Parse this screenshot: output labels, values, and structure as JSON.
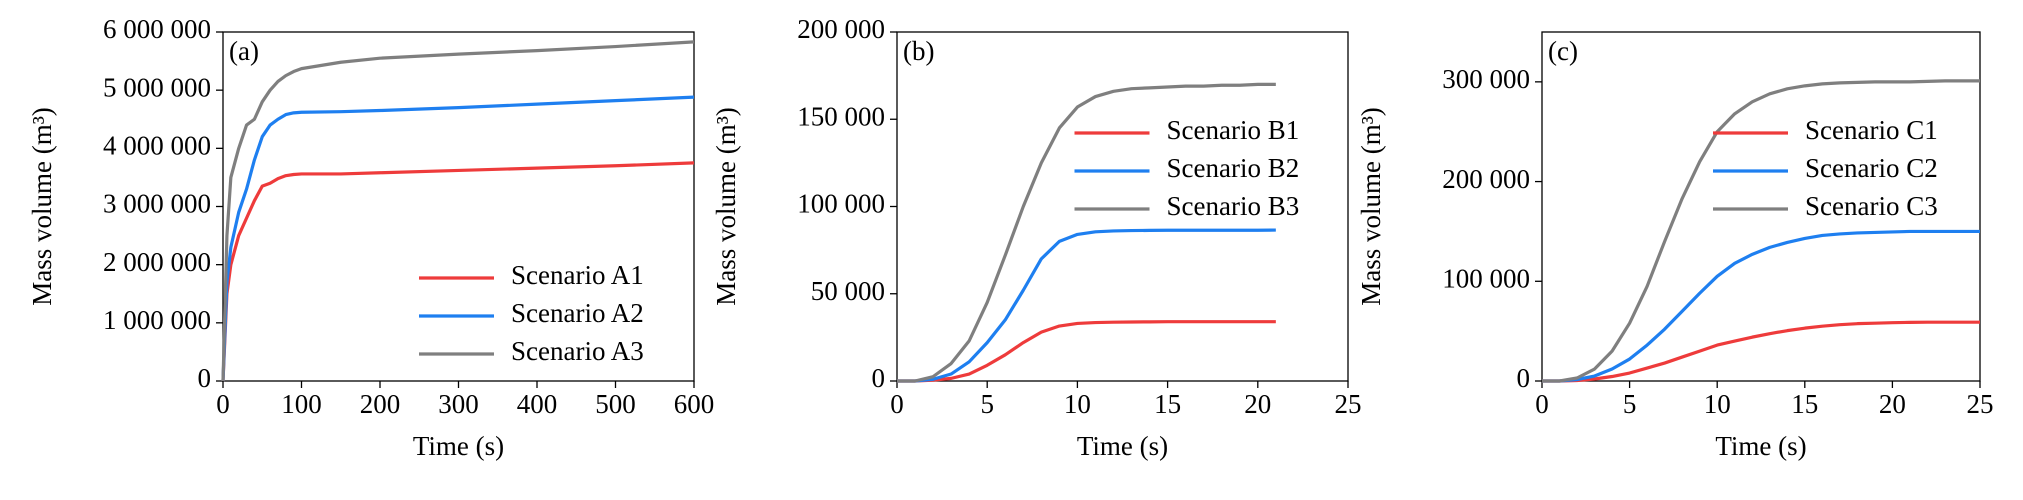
{
  "chart_data": [
    {
      "type": "line",
      "annotation": "(a)",
      "x_label": "Time (s)",
      "y_label": "Mass volume (m³)",
      "x": [
        0,
        5,
        10,
        20,
        30,
        40,
        50,
        60,
        70,
        80,
        90,
        100,
        150,
        200,
        300,
        400,
        500,
        600
      ],
      "series": [
        {
          "name": "Scenario A1",
          "color": "#ee3b3b",
          "values": [
            0,
            1500000,
            2000000,
            2500000,
            2800000,
            3100000,
            3350000,
            3400000,
            3480000,
            3530000,
            3550000,
            3560000,
            3560000,
            3580000,
            3620000,
            3660000,
            3700000,
            3750000
          ]
        },
        {
          "name": "Scenario A2",
          "color": "#1e7ff0",
          "values": [
            0,
            1700000,
            2300000,
            2900000,
            3300000,
            3800000,
            4200000,
            4400000,
            4500000,
            4580000,
            4610000,
            4620000,
            4630000,
            4650000,
            4700000,
            4760000,
            4820000,
            4880000
          ]
        },
        {
          "name": "Scenario A3",
          "color": "#7f7f7f",
          "values": [
            0,
            2500000,
            3500000,
            4000000,
            4400000,
            4500000,
            4800000,
            5000000,
            5150000,
            5250000,
            5320000,
            5370000,
            5480000,
            5550000,
            5620000,
            5680000,
            5750000,
            5830000
          ]
        }
      ],
      "xlim": [
        0,
        600
      ],
      "xticks": [
        0,
        100,
        200,
        300,
        400,
        500,
        600
      ],
      "ylim": [
        0,
        6000000
      ],
      "yticks": [
        0,
        {
          "value": 1000000,
          "label": "1 000 000"
        },
        {
          "value": 2000000,
          "label": "2 000 000"
        },
        {
          "value": 3000000,
          "label": "3 000 000"
        },
        {
          "value": 4000000,
          "label": "4 000 000"
        },
        {
          "value": 5000000,
          "label": "5 000 000"
        },
        {
          "value": 6000000,
          "label": "6 000 000"
        }
      ],
      "legend": "lower right"
    },
    {
      "type": "line",
      "annotation": "(b)",
      "x_label": "Time (s)",
      "y_label": "Mass volume (m³)",
      "x": [
        0,
        1,
        2,
        3,
        4,
        5,
        6,
        7,
        8,
        9,
        10,
        11,
        12,
        13,
        14,
        15,
        16,
        17,
        18,
        19,
        20,
        21
      ],
      "series": [
        {
          "name": "Scenario B1",
          "color": "#ee3b3b",
          "values": [
            0,
            0,
            500,
            1500,
            4000,
            9000,
            15000,
            22000,
            28000,
            31500,
            33000,
            33500,
            33700,
            33800,
            33900,
            34000,
            34000,
            34000,
            34000,
            34000,
            34000,
            34000
          ]
        },
        {
          "name": "Scenario B2",
          "color": "#1e7ff0",
          "values": [
            0,
            0,
            1000,
            4000,
            11000,
            22000,
            35000,
            52000,
            70000,
            80000,
            84000,
            85500,
            86000,
            86200,
            86300,
            86400,
            86400,
            86400,
            86400,
            86400,
            86400,
            86500
          ]
        },
        {
          "name": "Scenario B3",
          "color": "#7f7f7f",
          "values": [
            0,
            0,
            2500,
            10000,
            23000,
            45000,
            72000,
            100000,
            125000,
            145000,
            157000,
            163000,
            166000,
            167500,
            168000,
            168500,
            169000,
            169000,
            169500,
            169500,
            170000,
            170000
          ]
        }
      ],
      "xlim": [
        0,
        25
      ],
      "xticks": [
        0,
        5,
        10,
        15,
        20,
        25
      ],
      "ylim": [
        0,
        200000
      ],
      "yticks": [
        0,
        {
          "value": 50000,
          "label": "50 000"
        },
        {
          "value": 100000,
          "label": "100 000"
        },
        {
          "value": 150000,
          "label": "150 000"
        },
        {
          "value": 200000,
          "label": "200 000"
        }
      ],
      "legend": "upper center"
    },
    {
      "type": "line",
      "annotation": "(c)",
      "x_label": "Time (s)",
      "y_label": "Mass volume (m³)",
      "x": [
        0,
        1,
        2,
        3,
        4,
        5,
        6,
        7,
        8,
        9,
        10,
        11,
        12,
        13,
        14,
        15,
        16,
        17,
        18,
        19,
        20,
        21,
        22,
        23,
        24,
        25
      ],
      "series": [
        {
          "name": "Scenario C1",
          "color": "#ee3b3b",
          "values": [
            0,
            0,
            500,
            2000,
            4500,
            8000,
            13000,
            18000,
            24000,
            30000,
            36000,
            40000,
            44000,
            47500,
            50500,
            53000,
            55000,
            56500,
            57500,
            58000,
            58500,
            58800,
            59000,
            59000,
            59000,
            59000
          ]
        },
        {
          "name": "Scenario C2",
          "color": "#1e7ff0",
          "values": [
            0,
            0,
            1500,
            5000,
            12000,
            22000,
            36000,
            52000,
            70000,
            88000,
            105000,
            118000,
            127000,
            134000,
            139000,
            143000,
            146000,
            147500,
            148500,
            149000,
            149500,
            150000,
            150000,
            150000,
            150000,
            150000
          ]
        },
        {
          "name": "Scenario C3",
          "color": "#7f7f7f",
          "values": [
            0,
            0,
            3000,
            12000,
            30000,
            58000,
            95000,
            140000,
            183000,
            220000,
            250000,
            268000,
            280000,
            288000,
            293000,
            296000,
            298000,
            299000,
            299500,
            300000,
            300000,
            300000,
            300500,
            301000,
            301000,
            301000
          ]
        }
      ],
      "xlim": [
        0,
        25
      ],
      "xticks": [
        0,
        5,
        10,
        15,
        20,
        25
      ],
      "ylim": [
        0,
        350000
      ],
      "yticks": [
        0,
        {
          "value": 100000,
          "label": "100 000"
        },
        {
          "value": 200000,
          "label": "200 000"
        },
        {
          "value": 300000,
          "label": "300 000"
        }
      ],
      "legend": "upper center"
    }
  ]
}
